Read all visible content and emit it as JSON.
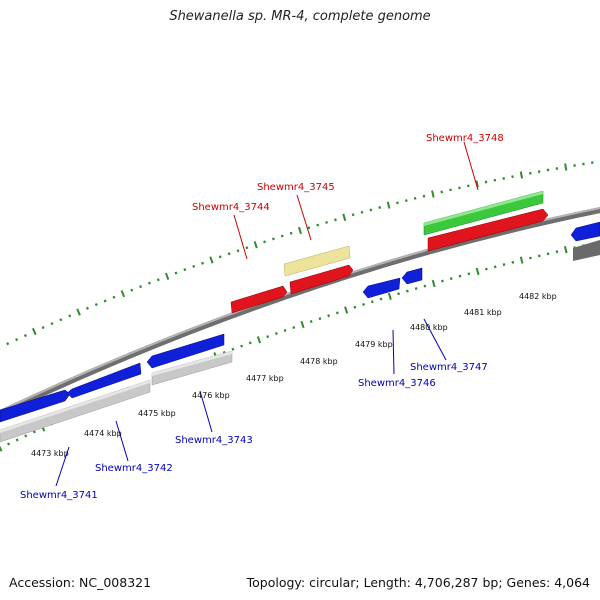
{
  "title": "Shewanella sp. MR-4, complete genome",
  "footer": {
    "accession": "Accession: NC_008321",
    "summary": "Topology: circular; Length: 4,706,287 bp; Genes: 4,064"
  },
  "colors": {
    "backbone": "#8a8a8a",
    "tick": "#2e8b2e",
    "cds_plus": "#e0141c",
    "cds_minus": "#1020d8",
    "gene_green": "#3cc83c",
    "gene_pale": "#eee39a",
    "gene_gray": "#c8c8c8",
    "gene_darkgray": "#6a6a6a",
    "label_red": "#cc0000",
    "label_blue": "#0000bb"
  },
  "ruler": [
    {
      "label": "4473 kbp"
    },
    {
      "label": "4474 kbp"
    },
    {
      "label": "4475 kbp"
    },
    {
      "label": "4476 kbp"
    },
    {
      "label": "4477 kbp"
    },
    {
      "label": "4478 kbp"
    },
    {
      "label": "4479 kbp"
    },
    {
      "label": "4480 kbp"
    },
    {
      "label": "4481 kbp"
    },
    {
      "label": "4482 kbp"
    }
  ],
  "genes": {
    "upper": [
      {
        "name": "Shewmr4_3744",
        "color": "label_red"
      },
      {
        "name": "Shewmr4_3745",
        "color": "label_red"
      },
      {
        "name": "Shewmr4_3748",
        "color": "label_red"
      }
    ],
    "lower": [
      {
        "name": "Shewmr4_3741",
        "color": "label_blue"
      },
      {
        "name": "Shewmr4_3742",
        "color": "label_blue"
      },
      {
        "name": "Shewmr4_3743",
        "color": "label_blue"
      },
      {
        "name": "Shewmr4_3746",
        "color": "label_blue"
      },
      {
        "name": "Shewmr4_3747",
        "color": "label_blue"
      }
    ]
  }
}
